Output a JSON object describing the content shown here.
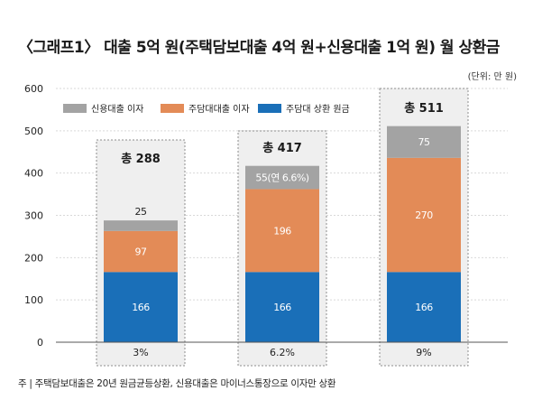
{
  "chart_data": {
    "type": "bar",
    "stacked": true,
    "title": "〈그래프1〉 대출 5억 원(주택담보대출 4억 원+신용대출 1억 원) 월 상환금",
    "unit_note": "(단위: 만 원)",
    "footnote": "주 | 주택담보대출은 20년 원금균등상환, 신용대출은 마이너스통장으로 이자만 상환",
    "ylim": [
      0,
      600
    ],
    "yticks": [
      0,
      100,
      200,
      300,
      400,
      500,
      600
    ],
    "grid": true,
    "legend_position": "top",
    "series": [
      {
        "name": "주담대 상환 원금",
        "color": "#1a6fb8",
        "values": [
          166,
          166,
          166
        ],
        "labels": [
          "166",
          "166",
          "166"
        ],
        "label_color": "#ffffff"
      },
      {
        "name": "주담대대출 이자",
        "color": "#e38b57",
        "values": [
          97,
          196,
          270
        ],
        "labels": [
          "97",
          "196",
          "270"
        ],
        "label_color": "#ffffff"
      },
      {
        "name": "신용대출 이자",
        "color": "#a3a3a3",
        "values": [
          25,
          55,
          75
        ],
        "labels": [
          "25",
          "55(연 6.6%)",
          "75"
        ],
        "label_color": "#ffffff"
      }
    ],
    "legend_order": [
      "신용대출 이자",
      "주담대대출 이자",
      "주담대 상환 원금"
    ],
    "totals": [
      "총 288",
      "총 417",
      "총 511"
    ],
    "rates": [
      "3%",
      "6.2%",
      "9%"
    ]
  }
}
